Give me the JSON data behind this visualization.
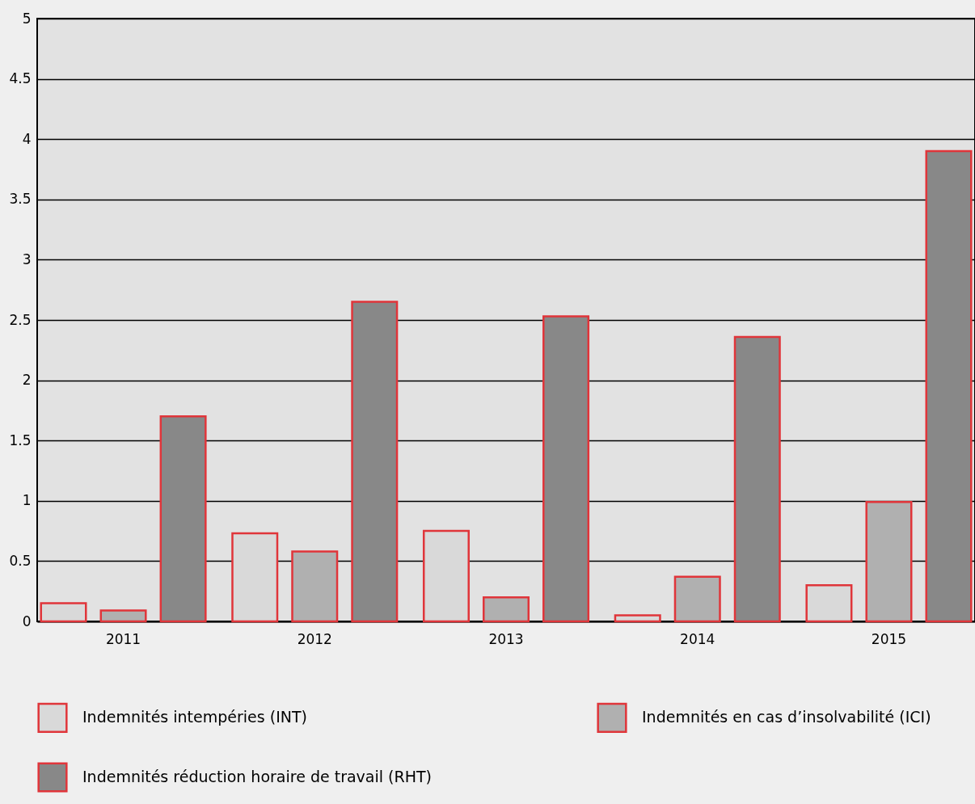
{
  "chart_data": {
    "type": "bar",
    "categories": [
      "2011",
      "2012",
      "2013",
      "2014",
      "2015"
    ],
    "series": [
      {
        "name": "Indemnités intempéries (INT)",
        "color": "#d9d9d9",
        "values": [
          0.15,
          0.73,
          0.75,
          0.05,
          0.3
        ]
      },
      {
        "name": "Indemnités en cas d’insolvabilité (ICI)",
        "color": "#b0b0b0",
        "values": [
          0.09,
          0.58,
          0.2,
          0.37,
          0.99
        ]
      },
      {
        "name": "Indemnités réduction horaire de travail (RHT)",
        "color": "#888888",
        "values": [
          1.7,
          2.65,
          2.53,
          2.36,
          3.9
        ]
      }
    ],
    "ylim": [
      0,
      5
    ],
    "yticks": [
      0,
      0.5,
      1,
      1.5,
      2,
      2.5,
      3,
      3.5,
      4,
      4.5,
      5
    ],
    "grid": "y",
    "legend": "bottom"
  }
}
